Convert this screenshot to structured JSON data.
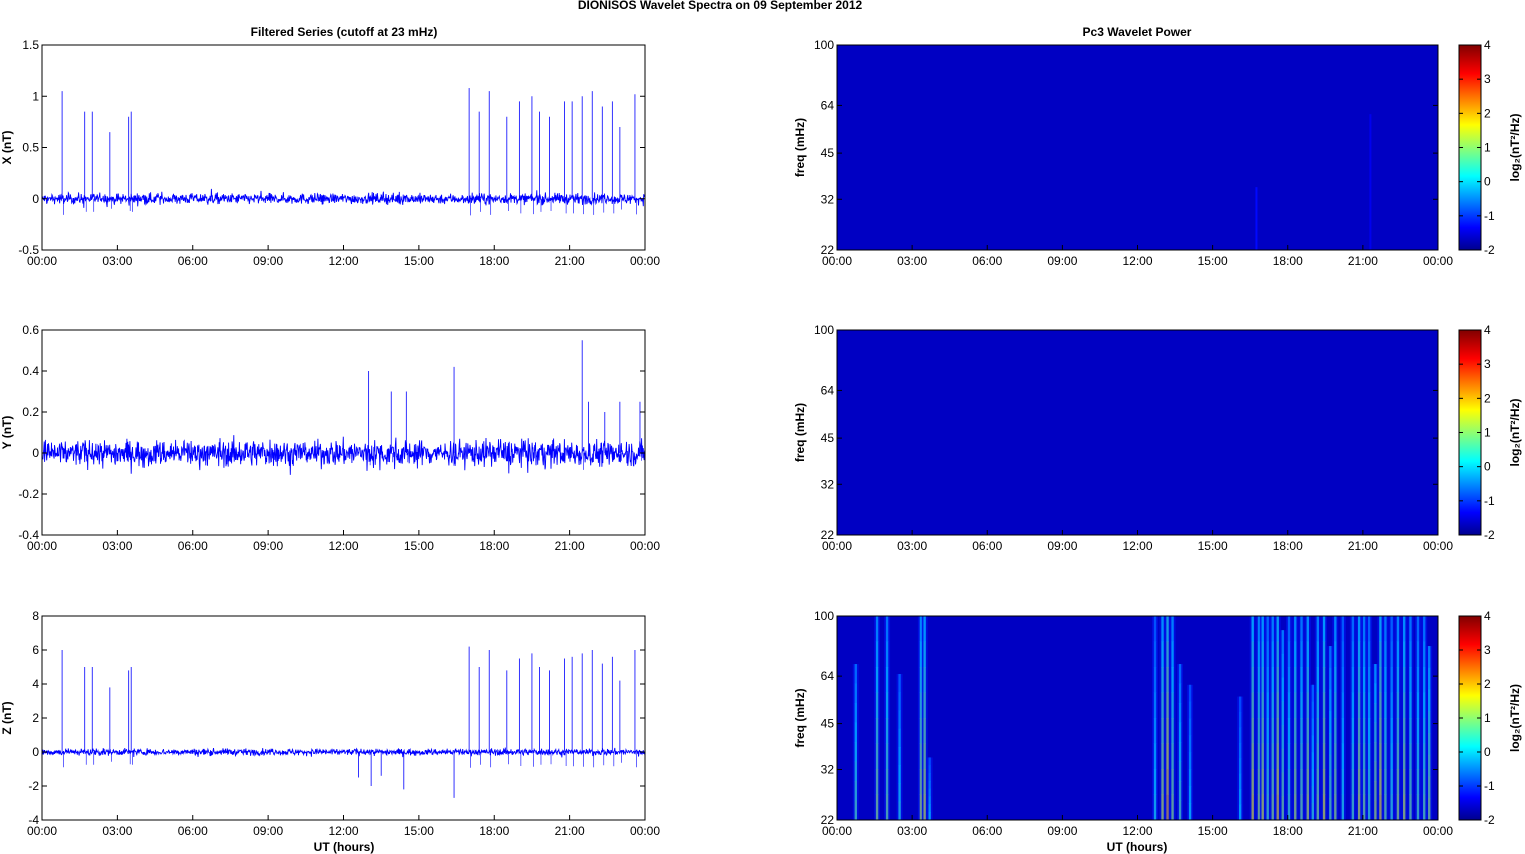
{
  "figure_title": "DIONISOS Wavelet Spectra on 09 September 2012",
  "left_title": "Filtered Series (cutoff at 23 mHz)",
  "right_title": "Pc3 Wavelet Power",
  "xlabel": "UT (hours)",
  "colorbar_label": "log₂(nT²/Hz)",
  "colors": {
    "trace": "#0000ff",
    "background_power": "#00009f",
    "axis": "#000000"
  },
  "chart_data": [
    {
      "type": "line",
      "title": "Filtered Series (cutoff at 23 mHz)",
      "ylabel": "X (nT)",
      "xlabel": "",
      "ylim": [
        -0.5,
        1.5
      ],
      "yticks": [
        "-0.5",
        "0",
        "0.5",
        "1",
        "1.5"
      ],
      "xlim": [
        0,
        24
      ],
      "xticks": [
        "00:00",
        "03:00",
        "06:00",
        "09:00",
        "12:00",
        "15:00",
        "18:00",
        "21:00",
        "00:00"
      ],
      "noise_amplitude": 0.04,
      "spikes_hours": [
        0.8,
        1.7,
        2.0,
        2.7,
        3.45,
        3.55,
        17.0,
        17.4,
        17.8,
        18.5,
        19.0,
        19.5,
        19.8,
        20.2,
        20.8,
        21.1,
        21.5,
        21.9,
        22.3,
        22.7,
        23.0,
        23.6
      ],
      "spikes_values": [
        1.05,
        0.85,
        0.85,
        0.65,
        0.8,
        0.85,
        1.08,
        0.85,
        1.05,
        0.8,
        0.95,
        1.0,
        0.85,
        0.8,
        0.95,
        0.95,
        1.0,
        1.05,
        0.9,
        0.95,
        0.7,
        1.02
      ]
    },
    {
      "type": "line",
      "ylabel": "Y (nT)",
      "xlabel": "",
      "ylim": [
        -0.4,
        0.6
      ],
      "yticks": [
        "-0.4",
        "-0.2",
        "0",
        "0.2",
        "0.4",
        "0.6"
      ],
      "xlim": [
        0,
        24
      ],
      "xticks": [
        "00:00",
        "03:00",
        "06:00",
        "09:00",
        "12:00",
        "15:00",
        "18:00",
        "21:00",
        "00:00"
      ],
      "noise_amplitude": 0.05,
      "spikes_hours": [
        13.0,
        13.9,
        14.5,
        16.4,
        21.5,
        21.75,
        22.4,
        23.0,
        23.8
      ],
      "spikes_values": [
        0.4,
        0.3,
        0.3,
        0.42,
        0.55,
        0.25,
        0.2,
        0.25,
        0.25
      ]
    },
    {
      "type": "line",
      "ylabel": "Z (nT)",
      "xlabel": "UT (hours)",
      "ylim": [
        -4,
        8
      ],
      "yticks": [
        "-4",
        "-2",
        "0",
        "2",
        "4",
        "6",
        "8"
      ],
      "xlim": [
        0,
        24
      ],
      "xticks": [
        "00:00",
        "03:00",
        "06:00",
        "09:00",
        "12:00",
        "15:00",
        "18:00",
        "21:00",
        "00:00"
      ],
      "noise_amplitude": 0.15,
      "spikes_hours": [
        0.8,
        1.7,
        2.0,
        2.7,
        3.45,
        3.55,
        17.0,
        17.4,
        17.8,
        18.5,
        19.0,
        19.5,
        19.8,
        20.2,
        20.8,
        21.1,
        21.5,
        21.9,
        22.3,
        22.7,
        23.0,
        23.6
      ],
      "spikes_values": [
        6.0,
        5.0,
        5.0,
        3.8,
        4.8,
        5.0,
        6.2,
        5.0,
        6.0,
        4.8,
        5.5,
        5.8,
        5.0,
        4.8,
        5.5,
        5.6,
        5.8,
        6.0,
        5.2,
        5.6,
        4.2,
        6.0
      ],
      "negative_spikes_hours": [
        12.6,
        13.1,
        13.5,
        14.4,
        16.4
      ],
      "negative_spikes_values": [
        -1.5,
        -2.0,
        -1.4,
        -2.2,
        -2.7
      ]
    },
    {
      "type": "heatmap",
      "title": "Pc3 Wavelet Power",
      "ylabel": "freq (mHz)",
      "yscale": "log",
      "ylim": [
        22,
        100
      ],
      "yticks": [
        "22",
        "32",
        "45",
        "64",
        "100"
      ],
      "xlim": [
        0,
        24
      ],
      "xticks": [
        "00:00",
        "03:00",
        "06:00",
        "09:00",
        "12:00",
        "15:00",
        "18:00",
        "21:00",
        "00:00"
      ],
      "clim": [
        -2,
        4
      ],
      "cticks": [
        "-2",
        "-1",
        "0",
        "1",
        "2",
        "3",
        "4"
      ],
      "colorbar_label": "log₂(nT²/Hz)",
      "background_level": -1.6,
      "features": [
        {
          "hour": 16.75,
          "level": -1.2,
          "fmax": 35
        },
        {
          "hour": 21.3,
          "level": -1.35,
          "fmax": 60
        }
      ]
    },
    {
      "type": "heatmap",
      "ylabel": "freq (mHz)",
      "yscale": "log",
      "ylim": [
        22,
        100
      ],
      "yticks": [
        "22",
        "32",
        "45",
        "64",
        "100"
      ],
      "xlim": [
        0,
        24
      ],
      "xticks": [
        "00:00",
        "03:00",
        "06:00",
        "09:00",
        "12:00",
        "15:00",
        "18:00",
        "21:00",
        "00:00"
      ],
      "clim": [
        -2,
        4
      ],
      "cticks": [
        "-2",
        "-1",
        "0",
        "1",
        "2",
        "3",
        "4"
      ],
      "colorbar_label": "log₂(nT²/Hz)",
      "background_level": -1.6,
      "features": []
    },
    {
      "type": "heatmap",
      "ylabel": "freq (mHz)",
      "xlabel": "UT (hours)",
      "yscale": "log",
      "ylim": [
        22,
        100
      ],
      "yticks": [
        "22",
        "32",
        "45",
        "64",
        "100"
      ],
      "xlim": [
        0,
        24
      ],
      "xticks": [
        "00:00",
        "03:00",
        "06:00",
        "09:00",
        "12:00",
        "15:00",
        "18:00",
        "21:00",
        "00:00"
      ],
      "clim": [
        -2,
        4
      ],
      "cticks": [
        "-2",
        "-1",
        "0",
        "1",
        "2",
        "3",
        "4"
      ],
      "colorbar_label": "log₂(nT²/Hz)",
      "background_level": -1.6,
      "stripes_hours": [
        0.75,
        1.6,
        2.0,
        2.5,
        3.35,
        3.5,
        3.7,
        12.7,
        13.0,
        13.2,
        13.4,
        13.7,
        14.1,
        16.1,
        16.6,
        16.85,
        17.0,
        17.2,
        17.4,
        17.6,
        17.8,
        18.05,
        18.3,
        18.55,
        18.8,
        19.0,
        19.2,
        19.45,
        19.7,
        19.9,
        20.2,
        20.6,
        20.85,
        21.05,
        21.25,
        21.5,
        21.7,
        21.9,
        22.15,
        22.4,
        22.65,
        22.9,
        23.2,
        23.45,
        23.65
      ],
      "stripes_levels": [
        0.8,
        1.2,
        1.0,
        0.5,
        1.4,
        1.6,
        0.2,
        0.4,
        1.5,
        2.2,
        1.2,
        0.8,
        0.3,
        0.2,
        1.8,
        1.3,
        1.6,
        0.8,
        1.2,
        1.9,
        1.1,
        0.7,
        1.4,
        1.0,
        1.5,
        0.6,
        1.2,
        1.7,
        0.9,
        1.3,
        0.5,
        0.8,
        1.6,
        1.1,
        0.7,
        1.4,
        1.9,
        1.0,
        0.6,
        1.3,
        1.5,
        1.0,
        0.8,
        0.9,
        1.2
      ],
      "stripes_fmax": [
        70,
        100,
        100,
        65,
        100,
        100,
        35,
        100,
        100,
        100,
        100,
        70,
        60,
        55,
        100,
        100,
        100,
        100,
        100,
        100,
        90,
        100,
        100,
        100,
        100,
        60,
        100,
        100,
        80,
        100,
        100,
        100,
        100,
        100,
        100,
        70,
        100,
        100,
        100,
        100,
        100,
        100,
        100,
        100,
        80
      ]
    }
  ]
}
